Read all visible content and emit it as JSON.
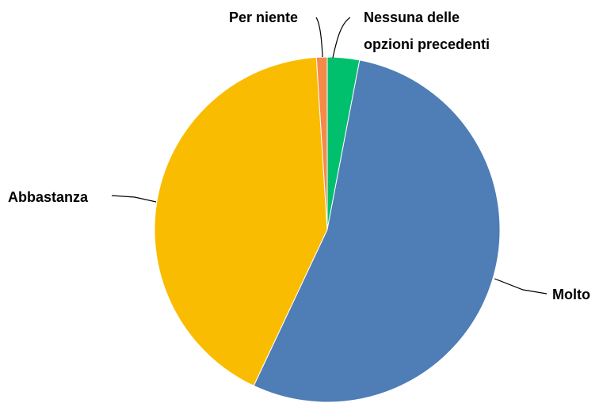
{
  "chart_data": {
    "type": "pie",
    "title": "",
    "slices": [
      {
        "label": "Nessuna delle opzioni precedenti",
        "label_lines": [
          "Nessuna delle",
          "opzioni precedenti"
        ],
        "value": 3,
        "color": "#00C06E"
      },
      {
        "label": "Molto",
        "label_lines": [
          "Molto"
        ],
        "value": 54,
        "color": "#4F7DB6"
      },
      {
        "label": "Abbastanza",
        "label_lines": [
          "Abbastanza"
        ],
        "value": 42,
        "color": "#F9BC00"
      },
      {
        "label": "Per niente",
        "label_lines": [
          "Per niente"
        ],
        "value": 1,
        "color": "#F5894A"
      }
    ],
    "legend": "none",
    "labels_placement": "outside-with-leader-lines"
  }
}
